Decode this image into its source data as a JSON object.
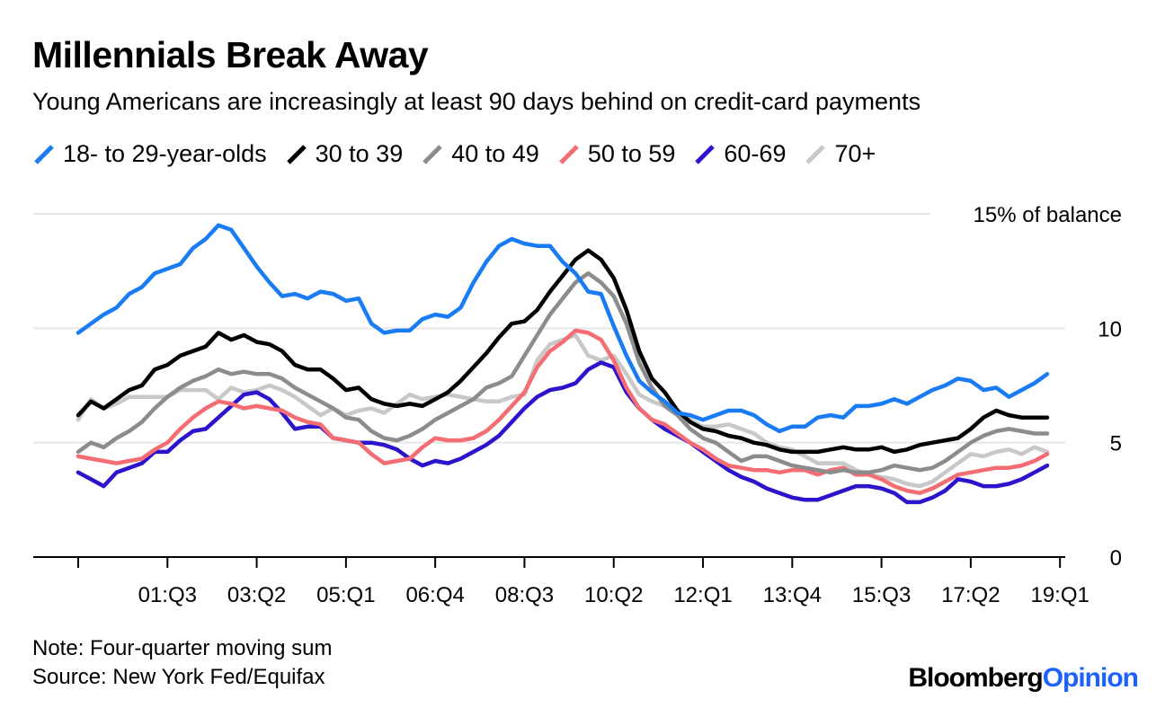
{
  "header": {
    "title": "Millennials Break Away",
    "subtitle": "Young Americans are increasingly at least 90 days behind on credit-card payments"
  },
  "footer": {
    "note": "Note: Four-quarter moving sum",
    "source": "Source: New York Fed/Equifax",
    "brand_primary": "Bloomberg",
    "brand_secondary": "Opinion"
  },
  "colors": {
    "s18_29": "#1a7cf5",
    "s30_39": "#000000",
    "s40_49": "#8c8c8c",
    "s50_59": "#f36d73",
    "s60_69": "#2c14cc",
    "s70": "#c8c8c8",
    "grid": "#e6e6e6"
  },
  "chart_data": {
    "type": "line",
    "title": "Millennials Break Away",
    "ylabel": "% of balance",
    "ylim": [
      0,
      15
    ],
    "yticks": [
      0,
      5,
      10,
      15
    ],
    "ytick_labels": [
      "0",
      "5",
      "10",
      "15% of balance"
    ],
    "x_start": "99:Q4",
    "x_end": "19:Q1",
    "x_tick_labels": [
      "01:Q3",
      "03:Q2",
      "05:Q1",
      "06:Q4",
      "08:Q3",
      "10:Q2",
      "12:Q1",
      "13:Q4",
      "15:Q3",
      "17:Q2",
      "19:Q1"
    ],
    "series": [
      {
        "name": "18- to 29-year-olds",
        "color": "#1a7cf5",
        "values": [
          9.8,
          10.2,
          10.6,
          10.9,
          11.5,
          11.8,
          12.4,
          12.6,
          12.8,
          13.5,
          13.9,
          14.5,
          14.3,
          13.5,
          12.7,
          12.0,
          11.4,
          11.5,
          11.3,
          11.6,
          11.5,
          11.2,
          11.3,
          10.2,
          9.8,
          9.9,
          9.9,
          10.4,
          10.6,
          10.5,
          10.9,
          12.0,
          12.9,
          13.6,
          13.9,
          13.7,
          13.6,
          13.6,
          12.9,
          12.4,
          11.6,
          11.5,
          10.1,
          8.8,
          7.7,
          7.2,
          6.8,
          6.3,
          6.2,
          6.0,
          6.2,
          6.4,
          6.4,
          6.2,
          5.8,
          5.5,
          5.7,
          5.7,
          6.1,
          6.2,
          6.1,
          6.6,
          6.6,
          6.7,
          6.9,
          6.7,
          7.0,
          7.3,
          7.5,
          7.8,
          7.7,
          7.3,
          7.4,
          7.0,
          7.3,
          7.6,
          8.0
        ]
      },
      {
        "name": "30 to 39",
        "color": "#000000",
        "values": [
          6.2,
          6.8,
          6.5,
          6.9,
          7.3,
          7.5,
          8.2,
          8.4,
          8.8,
          9.0,
          9.2,
          9.8,
          9.5,
          9.7,
          9.4,
          9.3,
          9.0,
          8.4,
          8.2,
          8.2,
          7.8,
          7.3,
          7.4,
          6.9,
          6.7,
          6.6,
          6.7,
          6.6,
          6.9,
          7.2,
          7.7,
          8.3,
          8.9,
          9.6,
          10.2,
          10.3,
          10.8,
          11.6,
          12.3,
          13.0,
          13.4,
          13.0,
          12.2,
          10.8,
          9.0,
          7.8,
          7.2,
          6.4,
          5.9,
          5.6,
          5.5,
          5.3,
          5.2,
          5.0,
          4.9,
          4.7,
          4.6,
          4.6,
          4.6,
          4.7,
          4.8,
          4.7,
          4.7,
          4.8,
          4.6,
          4.7,
          4.9,
          5.0,
          5.1,
          5.2,
          5.6,
          6.1,
          6.4,
          6.2,
          6.1,
          6.1,
          6.1
        ]
      },
      {
        "name": "40 to 49",
        "color": "#8c8c8c",
        "values": [
          4.6,
          5.0,
          4.8,
          5.2,
          5.5,
          5.9,
          6.5,
          7.0,
          7.4,
          7.7,
          7.9,
          8.2,
          8.0,
          8.1,
          8.0,
          8.0,
          7.8,
          7.4,
          7.1,
          6.8,
          6.5,
          6.1,
          6.0,
          5.5,
          5.2,
          5.1,
          5.3,
          5.6,
          6.0,
          6.3,
          6.6,
          6.9,
          7.4,
          7.6,
          7.9,
          8.8,
          9.7,
          10.6,
          11.3,
          12.0,
          12.4,
          12.0,
          11.4,
          10.2,
          8.5,
          7.4,
          6.6,
          6.2,
          5.6,
          5.2,
          5.0,
          4.6,
          4.2,
          4.4,
          4.4,
          4.2,
          4.0,
          3.9,
          3.8,
          3.7,
          3.8,
          3.7,
          3.7,
          3.8,
          4.0,
          3.9,
          3.8,
          3.9,
          4.2,
          4.6,
          5.0,
          5.3,
          5.5,
          5.6,
          5.5,
          5.4,
          5.4
        ]
      },
      {
        "name": "50 to 59",
        "color": "#f36d73",
        "values": [
          4.4,
          4.3,
          4.2,
          4.1,
          4.2,
          4.3,
          4.7,
          5.0,
          5.6,
          6.1,
          6.5,
          6.8,
          6.7,
          6.5,
          6.6,
          6.5,
          6.4,
          6.1,
          5.9,
          5.8,
          5.2,
          5.1,
          5.0,
          4.5,
          4.1,
          4.2,
          4.3,
          4.8,
          5.2,
          5.1,
          5.1,
          5.2,
          5.5,
          6.0,
          6.6,
          7.2,
          8.3,
          9.0,
          9.4,
          9.9,
          9.8,
          9.5,
          8.6,
          7.4,
          6.5,
          6.0,
          5.8,
          5.4,
          5.0,
          4.7,
          4.3,
          4.0,
          3.9,
          3.8,
          3.8,
          3.7,
          3.8,
          3.8,
          3.6,
          3.8,
          3.9,
          3.6,
          3.6,
          3.4,
          3.1,
          2.9,
          2.8,
          3.0,
          3.3,
          3.6,
          3.7,
          3.8,
          3.9,
          3.9,
          4.0,
          4.2,
          4.5
        ]
      },
      {
        "name": "60-69",
        "color": "#2c14cc",
        "values": [
          3.7,
          3.4,
          3.1,
          3.7,
          3.9,
          4.1,
          4.6,
          4.6,
          5.1,
          5.5,
          5.6,
          6.1,
          6.6,
          7.1,
          7.2,
          6.9,
          6.3,
          5.6,
          5.7,
          5.7,
          5.2,
          5.1,
          5.0,
          5.0,
          4.9,
          4.7,
          4.3,
          4.0,
          4.2,
          4.1,
          4.3,
          4.6,
          4.9,
          5.3,
          5.9,
          6.5,
          7.0,
          7.3,
          7.4,
          7.6,
          8.2,
          8.5,
          8.3,
          7.2,
          6.5,
          6.0,
          5.6,
          5.3,
          5.0,
          4.6,
          4.2,
          3.8,
          3.5,
          3.3,
          3.0,
          2.8,
          2.6,
          2.5,
          2.5,
          2.7,
          2.9,
          3.1,
          3.1,
          3.0,
          2.8,
          2.4,
          2.4,
          2.6,
          2.9,
          3.4,
          3.3,
          3.1,
          3.1,
          3.2,
          3.4,
          3.7,
          4.0
        ]
      },
      {
        "name": "70+",
        "color": "#c8c8c8",
        "values": [
          6.0,
          6.9,
          6.5,
          6.7,
          7.0,
          7.0,
          7.0,
          7.0,
          7.3,
          7.3,
          7.3,
          6.9,
          7.4,
          7.2,
          7.3,
          7.5,
          7.3,
          7.0,
          6.6,
          6.2,
          6.5,
          6.2,
          6.4,
          6.5,
          6.3,
          6.7,
          7.1,
          6.9,
          7.0,
          7.1,
          7.0,
          6.9,
          6.8,
          6.8,
          7.0,
          7.1,
          8.6,
          9.3,
          9.5,
          9.7,
          8.8,
          8.6,
          8.8,
          8.0,
          7.1,
          6.8,
          6.6,
          6.3,
          6.0,
          5.7,
          5.7,
          5.8,
          5.6,
          5.4,
          5.0,
          4.8,
          4.7,
          4.4,
          4.1,
          4.1,
          4.1,
          3.8,
          3.6,
          3.5,
          3.4,
          3.2,
          3.1,
          3.3,
          3.7,
          4.1,
          4.5,
          4.4,
          4.6,
          4.7,
          4.5,
          4.8,
          4.6
        ]
      }
    ]
  }
}
